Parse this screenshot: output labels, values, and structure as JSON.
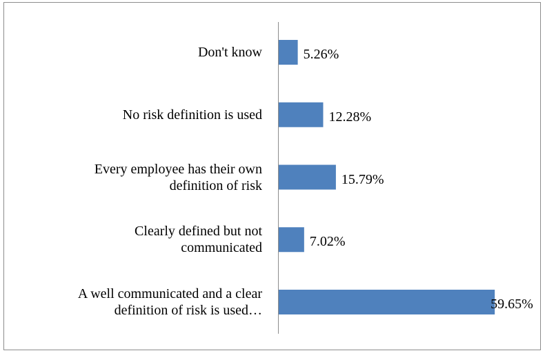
{
  "chart_data": {
    "type": "bar",
    "orientation": "horizontal",
    "categories": [
      "Don't know",
      "No risk definition is used",
      "Every employee has their own\ndefinition of risk",
      "Clearly defined but not\ncommunicated",
      "A well communicated and a clear\ndefinition of risk is used…"
    ],
    "values": [
      5.26,
      12.28,
      15.79,
      7.02,
      59.65
    ],
    "value_labels": [
      "5.26%",
      "12.28%",
      "15.79%",
      "7.02%",
      "59.65%"
    ],
    "color": "#4f81bd"
  }
}
